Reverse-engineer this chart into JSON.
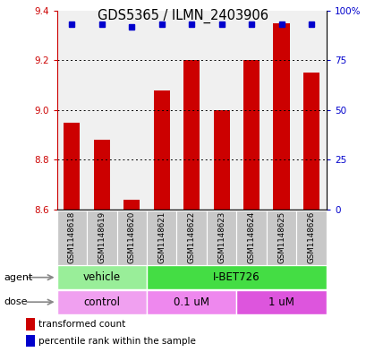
{
  "title": "GDS5365 / ILMN_2403906",
  "samples": [
    "GSM1148618",
    "GSM1148619",
    "GSM1148620",
    "GSM1148621",
    "GSM1148622",
    "GSM1148623",
    "GSM1148624",
    "GSM1148625",
    "GSM1148626"
  ],
  "bar_values": [
    8.95,
    8.88,
    8.64,
    9.08,
    9.2,
    9.0,
    9.2,
    9.35,
    9.15
  ],
  "bar_bottom": 8.6,
  "perc_rank": [
    93,
    93,
    92,
    93,
    93,
    93,
    93,
    93,
    93
  ],
  "ylim": [
    8.6,
    9.4
  ],
  "y2lim": [
    0,
    100
  ],
  "yticks": [
    8.6,
    8.8,
    9.0,
    9.2,
    9.4
  ],
  "y2ticks": [
    0,
    25,
    50,
    75,
    100
  ],
  "y2ticklabels": [
    "0",
    "25",
    "50",
    "75",
    "100%"
  ],
  "bar_color": "#cc0000",
  "percentile_color": "#0000cc",
  "plot_bg": "#f0f0f0",
  "agent_groups": [
    {
      "label": "vehicle",
      "start": 0,
      "end": 3,
      "color": "#99ee99"
    },
    {
      "label": "I-BET726",
      "start": 3,
      "end": 9,
      "color": "#44dd44"
    }
  ],
  "dose_groups": [
    {
      "label": "control",
      "start": 0,
      "end": 3,
      "color": "#f0a0f0"
    },
    {
      "label": "0.1 uM",
      "start": 3,
      "end": 6,
      "color": "#ee88ee"
    },
    {
      "label": "1 uM",
      "start": 6,
      "end": 9,
      "color": "#dd55dd"
    }
  ]
}
